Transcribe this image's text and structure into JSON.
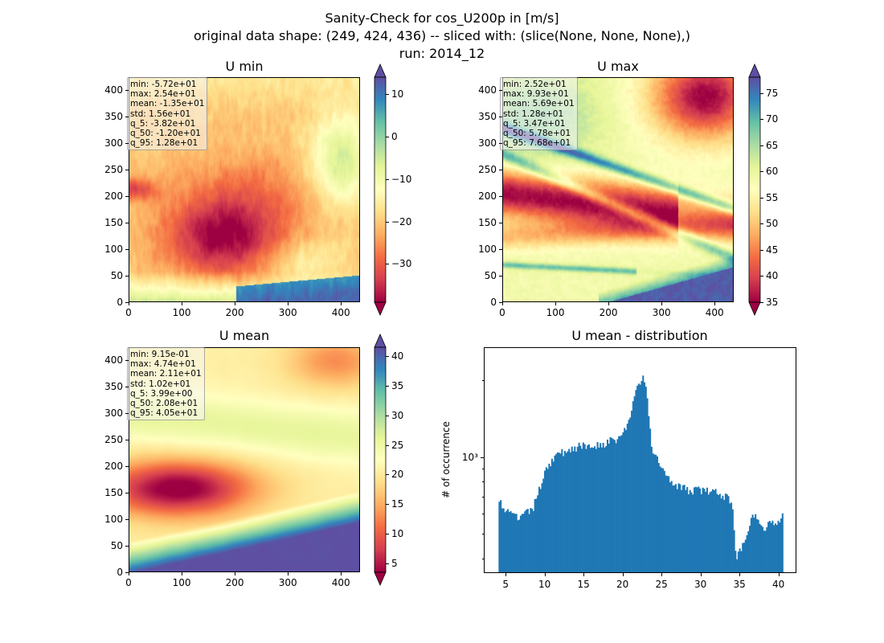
{
  "figure": {
    "title_lines": [
      "Sanity-Check for cos_U200p in [m/s]",
      "original data shape: (249, 424, 436) -- sliced with: (slice(None, None, None),)",
      "run: 2014_12"
    ]
  },
  "colors": {
    "hist_bar": "#1f77b4",
    "colormap": "Spectral"
  },
  "chart_data": [
    {
      "type": "heatmap",
      "title": "U min",
      "colormap": "Spectral",
      "xlim": [
        0,
        436
      ],
      "ylim": [
        0,
        424
      ],
      "xticks": [
        0,
        100,
        200,
        300,
        400
      ],
      "yticks": [
        0,
        50,
        100,
        150,
        200,
        250,
        300,
        350,
        400
      ],
      "colorbar": {
        "range": [
          -39,
          14
        ],
        "ticks": [
          10,
          0,
          -10,
          -20,
          -30
        ],
        "tick_labels": [
          "10",
          "0",
          "−10",
          "−20",
          "−30"
        ],
        "extend": "both"
      },
      "stats": [
        "min: -5.72e+01",
        "max: 2.54e+01",
        "mean: -1.35e+01",
        "std: 1.56e+01",
        "q_5: -3.82e+01",
        "q_50: -1.20e+01",
        "q_95: 1.28e+01"
      ]
    },
    {
      "type": "heatmap",
      "title": "U max",
      "colormap": "Spectral",
      "xlim": [
        0,
        436
      ],
      "ylim": [
        0,
        424
      ],
      "xticks": [
        0,
        100,
        200,
        300,
        400
      ],
      "yticks": [
        0,
        50,
        100,
        150,
        200,
        250,
        300,
        350,
        400
      ],
      "colorbar": {
        "range": [
          35,
          78
        ],
        "ticks": [
          75,
          70,
          65,
          60,
          55,
          50,
          45,
          40,
          35
        ],
        "tick_labels": [
          "75",
          "70",
          "65",
          "60",
          "55",
          "50",
          "45",
          "40",
          "35"
        ],
        "extend": "both"
      },
      "stats": [
        "min: 2.52e+01",
        "max: 9.93e+01",
        "mean: 5.69e+01",
        "std: 1.28e+01",
        "q_5: 3.47e+01",
        "q_50: 5.78e+01",
        "q_95: 7.68e+01"
      ]
    },
    {
      "type": "heatmap",
      "title": "U mean",
      "colormap": "Spectral",
      "xlim": [
        0,
        436
      ],
      "ylim": [
        0,
        424
      ],
      "xticks": [
        0,
        100,
        200,
        300,
        400
      ],
      "yticks": [
        0,
        50,
        100,
        150,
        200,
        250,
        300,
        350,
        400
      ],
      "colorbar": {
        "range": [
          3.5,
          41.5
        ],
        "ticks": [
          40,
          35,
          30,
          25,
          20,
          15,
          10,
          5
        ],
        "tick_labels": [
          "40",
          "35",
          "30",
          "25",
          "20",
          "15",
          "10",
          "5"
        ],
        "extend": "both"
      },
      "stats": [
        "min: 9.15e-01",
        "max: 4.74e+01",
        "mean: 2.11e+01",
        "std: 1.02e+01",
        "q_5: 3.99e+00",
        "q_50: 2.08e+01",
        "q_95: 4.05e+01"
      ]
    },
    {
      "type": "bar",
      "title": "U mean - distribution",
      "ylabel": "# of occurrence",
      "xlabel": "",
      "yscale": "log",
      "xlim": [
        2.2,
        42.3
      ],
      "ylim": [
        350,
        2700
      ],
      "xticks": [
        5,
        10,
        15,
        20,
        25,
        30,
        35,
        40
      ],
      "yticks": [
        1000
      ],
      "ytick_labels": [
        "10³"
      ],
      "bin_range": [
        3.99,
        40.5
      ],
      "bins": 200,
      "profile_x": [
        3.99,
        4.3,
        4.5,
        5.5,
        6.5,
        7.5,
        8.5,
        9.3,
        9.7,
        10.0,
        10.5,
        11.0,
        12.0,
        13.0,
        14.0,
        15.0,
        16.0,
        17.0,
        18.0,
        19.0,
        19.8,
        20.5,
        21.0,
        21.6,
        22.0,
        22.5,
        22.8,
        23.2,
        23.6,
        24.5,
        25.5,
        26.5,
        27.5,
        28.5,
        29.5,
        30.5,
        31.5,
        32.5,
        33.3,
        33.8,
        34.1,
        34.3,
        34.6,
        35.0,
        35.5,
        36.0,
        36.5,
        37.0,
        37.5,
        38.0,
        38.5,
        39.0,
        39.5,
        40.0,
        40.3,
        40.5
      ],
      "profile_y": [
        700,
        700,
        630,
        600,
        580,
        600,
        640,
        760,
        850,
        910,
        940,
        1000,
        1040,
        1080,
        1100,
        1110,
        1120,
        1130,
        1150,
        1180,
        1220,
        1350,
        1500,
        1800,
        1990,
        2050,
        1950,
        1500,
        1100,
        960,
        860,
        800,
        760,
        740,
        750,
        740,
        730,
        720,
        700,
        680,
        580,
        460,
        410,
        430,
        470,
        530,
        590,
        610,
        550,
        530,
        540,
        550,
        560,
        570,
        600,
        650
      ],
      "noise": 0.04
    }
  ]
}
